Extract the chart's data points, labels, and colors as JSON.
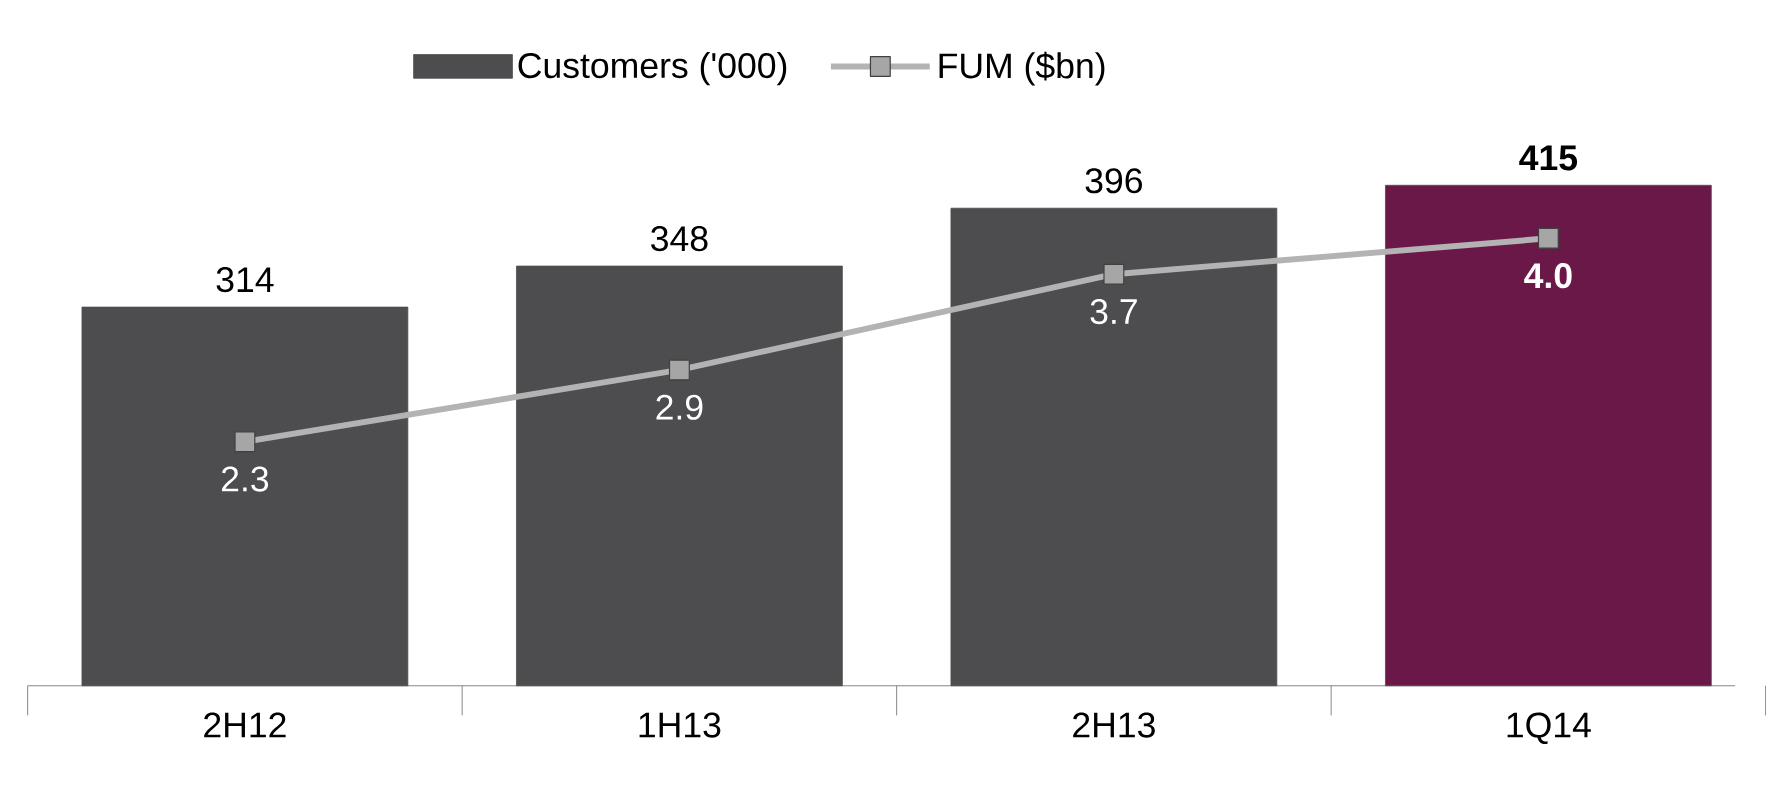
{
  "chart_data": {
    "type": "bar",
    "categories": [
      "2H12",
      "1H13",
      "2H13",
      "1Q14"
    ],
    "series": [
      {
        "name": "Customers ('000)",
        "color": "#4d4d4f",
        "colors": [
          "#4d4d4f",
          "#4d4d4f",
          "#4d4d4f",
          "#6a1848"
        ],
        "values": [
          314,
          348,
          396,
          415
        ],
        "value_labels": [
          "314",
          "348",
          "396",
          "**415**"
        ]
      },
      {
        "name": "FUM ($bn)",
        "type": "line",
        "axis": "y2",
        "color": "#b3b3b3",
        "marker": "square",
        "values": [
          2.3,
          2.9,
          3.7,
          4.0
        ],
        "value_labels": [
          "2.3",
          "2.9",
          "3.7",
          "**4.0**"
        ]
      }
    ],
    "tick_labels": "x",
    "legend": "top",
    "grid": false
  }
}
